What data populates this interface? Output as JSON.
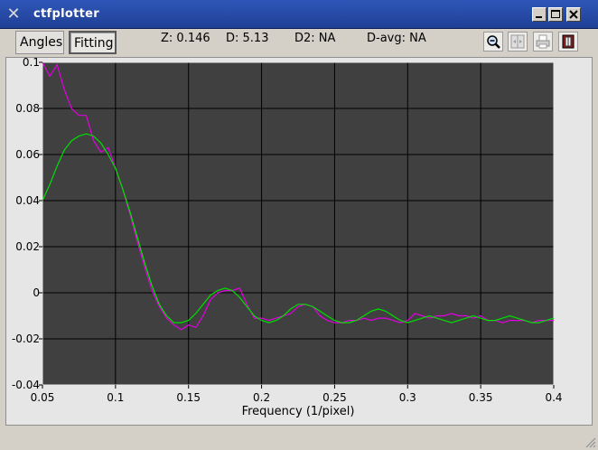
{
  "window": {
    "title": "ctfplotter"
  },
  "icons": {
    "app": "x-app-icon",
    "minimize": "minimize-icon",
    "maximize": "maximize-icon",
    "close": "close-icon",
    "zoom": "zoom-icon",
    "split": "split-view-icon",
    "print": "print-icon",
    "book": "book-icon"
  },
  "toolbar": {
    "angles_label": "Angles",
    "fitting_label": "Fitting",
    "z_text": "Z: 0.146",
    "d_text": "D: 5.13",
    "d2_text": "D2: NA",
    "davg_text": "D-avg: NA"
  },
  "chart_data": {
    "type": "line",
    "xlabel": "Frequency (1/pixel)",
    "ylabel": "",
    "xlim": [
      0.05,
      0.4
    ],
    "ylim": [
      -0.04,
      0.1
    ],
    "xticks": [
      0.05,
      0.1,
      0.15,
      0.2,
      0.25,
      0.3,
      0.35,
      0.4
    ],
    "xtick_labels": [
      "0.05",
      "0.1",
      "0.15",
      "0.2",
      "0.25",
      "0.3",
      "0.35",
      "0.4"
    ],
    "yticks": [
      -0.04,
      -0.02,
      0,
      0.02,
      0.04,
      0.06,
      0.08,
      0.1
    ],
    "ytick_labels": [
      "-0.04",
      "-0.02",
      "0",
      "0.02",
      "0.04",
      "0.06",
      "0.08",
      "0.1"
    ],
    "grid": true,
    "background": "#404040",
    "grid_color": "#000000",
    "series": [
      {
        "color": "#e000e0",
        "x": [
          0.05,
          0.055,
          0.06,
          0.065,
          0.07,
          0.075,
          0.08,
          0.085,
          0.09,
          0.095,
          0.1,
          0.105,
          0.11,
          0.115,
          0.12,
          0.125,
          0.13,
          0.135,
          0.14,
          0.145,
          0.15,
          0.155,
          0.16,
          0.165,
          0.17,
          0.175,
          0.18,
          0.185,
          0.19,
          0.195,
          0.2,
          0.205,
          0.21,
          0.215,
          0.22,
          0.225,
          0.23,
          0.235,
          0.24,
          0.245,
          0.25,
          0.255,
          0.26,
          0.265,
          0.27,
          0.275,
          0.28,
          0.285,
          0.29,
          0.295,
          0.3,
          0.305,
          0.31,
          0.315,
          0.32,
          0.325,
          0.33,
          0.335,
          0.34,
          0.345,
          0.35,
          0.355,
          0.36,
          0.365,
          0.37,
          0.375,
          0.38,
          0.385,
          0.39,
          0.395,
          0.4
        ],
        "y": [
          0.1,
          0.094,
          0.099,
          0.088,
          0.08,
          0.077,
          0.077,
          0.066,
          0.061,
          0.063,
          0.054,
          0.045,
          0.034,
          0.022,
          0.011,
          0.001,
          -0.006,
          -0.011,
          -0.014,
          -0.016,
          -0.014,
          -0.015,
          -0.01,
          -0.003,
          0.0,
          0.001,
          0.001,
          0.002,
          -0.005,
          -0.011,
          -0.011,
          -0.012,
          -0.011,
          -0.01,
          -0.009,
          -0.006,
          -0.005,
          -0.006,
          -0.01,
          -0.012,
          -0.013,
          -0.013,
          -0.012,
          -0.012,
          -0.011,
          -0.012,
          -0.011,
          -0.011,
          -0.012,
          -0.013,
          -0.012,
          -0.009,
          -0.01,
          -0.011,
          -0.01,
          -0.01,
          -0.009,
          -0.01,
          -0.01,
          -0.011,
          -0.01,
          -0.012,
          -0.012,
          -0.013,
          -0.012,
          -0.012,
          -0.012,
          -0.013,
          -0.012,
          -0.012,
          -0.012
        ]
      },
      {
        "color": "#00e000",
        "x": [
          0.05,
          0.055,
          0.06,
          0.065,
          0.07,
          0.075,
          0.08,
          0.085,
          0.09,
          0.095,
          0.1,
          0.105,
          0.11,
          0.115,
          0.12,
          0.125,
          0.13,
          0.135,
          0.14,
          0.145,
          0.15,
          0.155,
          0.16,
          0.165,
          0.17,
          0.175,
          0.18,
          0.185,
          0.19,
          0.195,
          0.2,
          0.205,
          0.21,
          0.215,
          0.22,
          0.225,
          0.23,
          0.235,
          0.24,
          0.245,
          0.25,
          0.255,
          0.26,
          0.265,
          0.27,
          0.275,
          0.28,
          0.285,
          0.29,
          0.295,
          0.3,
          0.305,
          0.31,
          0.315,
          0.32,
          0.325,
          0.33,
          0.335,
          0.34,
          0.345,
          0.35,
          0.355,
          0.36,
          0.365,
          0.37,
          0.375,
          0.38,
          0.385,
          0.39,
          0.395,
          0.4
        ],
        "y": [
          0.04,
          0.047,
          0.055,
          0.062,
          0.066,
          0.068,
          0.069,
          0.068,
          0.065,
          0.06,
          0.054,
          0.045,
          0.035,
          0.024,
          0.013,
          0.003,
          -0.005,
          -0.01,
          -0.013,
          -0.013,
          -0.012,
          -0.009,
          -0.005,
          -0.001,
          0.001,
          0.002,
          0.001,
          -0.002,
          -0.006,
          -0.01,
          -0.012,
          -0.013,
          -0.012,
          -0.01,
          -0.007,
          -0.005,
          -0.005,
          -0.006,
          -0.008,
          -0.01,
          -0.012,
          -0.013,
          -0.013,
          -0.012,
          -0.01,
          -0.008,
          -0.007,
          -0.008,
          -0.01,
          -0.012,
          -0.013,
          -0.012,
          -0.011,
          -0.01,
          -0.011,
          -0.012,
          -0.013,
          -0.012,
          -0.011,
          -0.01,
          -0.011,
          -0.012,
          -0.012,
          -0.011,
          -0.01,
          -0.011,
          -0.012,
          -0.013,
          -0.013,
          -0.012,
          -0.011
        ]
      }
    ]
  }
}
